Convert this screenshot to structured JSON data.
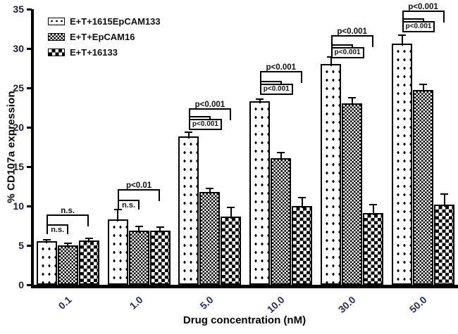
{
  "figure": {
    "y_axis_title": "% CD107a expression",
    "x_axis_title": "Drug concentration (nM)"
  },
  "legend": {
    "items": [
      {
        "label": "E+T+1615EpCAM133",
        "pattern": "dots"
      },
      {
        "label": "E+T+EpCAM16",
        "pattern": "fine-check"
      },
      {
        "label": "E+T+16133",
        "pattern": "check"
      }
    ]
  },
  "chart_data": {
    "type": "bar",
    "title": "",
    "xlabel": "Drug concentration (nM)",
    "ylabel": "% CD107a expression",
    "ylim": [
      0,
      35
    ],
    "y_ticks": [
      0,
      5,
      10,
      15,
      20,
      25,
      30,
      35
    ],
    "grid": false,
    "legend_position": "top-left-inside",
    "categories": [
      "0.1",
      "1.0",
      "5.0",
      "10.0",
      "30.0",
      "50.0"
    ],
    "series": [
      {
        "name": "E+T+1615EpCAM133",
        "pattern": "dots",
        "values": [
          5.5,
          8.3,
          18.8,
          23.3,
          28.0,
          30.6
        ],
        "errors": [
          0.3,
          1.3,
          0.7,
          0.4,
          1.0,
          1.2
        ]
      },
      {
        "name": "E+T+EpCAM16",
        "pattern": "fine-check",
        "values": [
          5.0,
          6.9,
          11.8,
          16.1,
          23.0,
          24.7
        ],
        "errors": [
          0.4,
          0.6,
          0.5,
          0.8,
          0.8,
          0.8
        ]
      },
      {
        "name": "E+T+16133",
        "pattern": "check",
        "values": [
          5.6,
          6.9,
          8.7,
          10.0,
          9.1,
          10.2
        ],
        "errors": [
          0.4,
          0.5,
          1.2,
          1.2,
          1.2,
          1.4
        ]
      }
    ],
    "significance": [
      {
        "group": "0.1",
        "inner": {
          "label": "n.s.",
          "y": 7.7,
          "boxed": false
        },
        "outer": {
          "label": "n.s.",
          "y": 8.9
        }
      },
      {
        "group": "1.0",
        "inner": {
          "label": "n.s.",
          "y": 10.8,
          "boxed": false
        },
        "outer": {
          "label": "p<0.01",
          "y": 12.1
        }
      },
      {
        "group": "5.0",
        "inner": {
          "label": "p<0.001",
          "y": 21.4,
          "boxed": true
        },
        "outer": {
          "label": "p<0.001",
          "y": 22.4
        }
      },
      {
        "group": "10.0",
        "inner": {
          "label": "p<0.001",
          "y": 25.9,
          "boxed": true
        },
        "outer": {
          "label": "p<0.001",
          "y": 27.1
        }
      },
      {
        "group": "30.0",
        "inner": {
          "label": "p<0.001",
          "y": 30.5,
          "boxed": true
        },
        "outer": {
          "label": "p<0.001",
          "y": 31.7
        }
      },
      {
        "group": "50.0",
        "inner": {
          "label": "p<0.001",
          "y": 33.8,
          "boxed": true
        },
        "outer": {
          "label": "p<0.001",
          "y": 34.8
        }
      }
    ],
    "colors": {
      "foreground": "#000000",
      "background": "#ffffff",
      "y_tick_label": "#171c3e",
      "x_tick_label": "#212c66"
    }
  }
}
